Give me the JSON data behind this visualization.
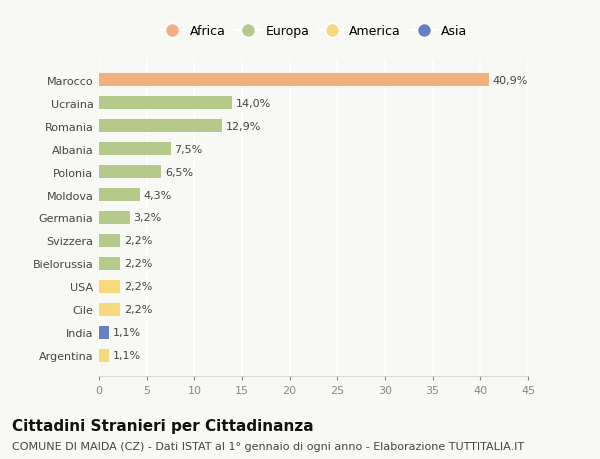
{
  "categories": [
    "Marocco",
    "Ucraina",
    "Romania",
    "Albania",
    "Polonia",
    "Moldova",
    "Germania",
    "Svizzera",
    "Bielorussia",
    "USA",
    "Cile",
    "India",
    "Argentina"
  ],
  "values": [
    40.9,
    14.0,
    12.9,
    7.5,
    6.5,
    4.3,
    3.2,
    2.2,
    2.2,
    2.2,
    2.2,
    1.1,
    1.1
  ],
  "labels": [
    "40,9%",
    "14,0%",
    "12,9%",
    "7,5%",
    "6,5%",
    "4,3%",
    "3,2%",
    "2,2%",
    "2,2%",
    "2,2%",
    "2,2%",
    "1,1%",
    "1,1%"
  ],
  "continents": [
    "Africa",
    "Europa",
    "Europa",
    "Europa",
    "Europa",
    "Europa",
    "Europa",
    "Europa",
    "Europa",
    "America",
    "America",
    "Asia",
    "America"
  ],
  "colors": {
    "Africa": "#F2B07E",
    "Europa": "#B5C98A",
    "America": "#F5D97A",
    "Asia": "#6680C4"
  },
  "legend": [
    {
      "label": "Africa",
      "color": "#F2B07E"
    },
    {
      "label": "Europa",
      "color": "#B5C98A"
    },
    {
      "label": "America",
      "color": "#F5D97A"
    },
    {
      "label": "Asia",
      "color": "#6680C4"
    }
  ],
  "xlim": [
    0,
    45
  ],
  "xticks": [
    0,
    5,
    10,
    15,
    20,
    25,
    30,
    35,
    40,
    45
  ],
  "title": "Cittadini Stranieri per Cittadinanza",
  "subtitle": "COMUNE DI MAIDA (CZ) - Dati ISTAT al 1° gennaio di ogni anno - Elaborazione TUTTITALIA.IT",
  "background_color": "#f8f8f4",
  "bar_height": 0.55,
  "title_fontsize": 11,
  "subtitle_fontsize": 8,
  "tick_fontsize": 8,
  "label_fontsize": 8
}
